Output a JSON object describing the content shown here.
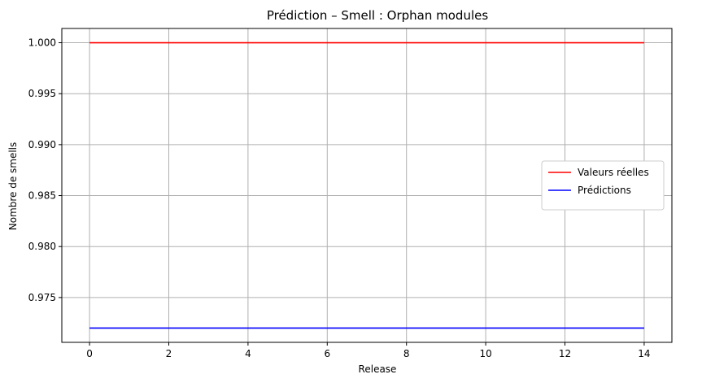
{
  "chart_data": {
    "type": "line",
    "title": "Prédiction – Smell : Orphan modules",
    "xlabel": "Release",
    "ylabel": "Nombre de smells",
    "xlim": [
      -0.7,
      14.7
    ],
    "ylim": [
      0.9706,
      1.0014
    ],
    "xticks": [
      0,
      2,
      4,
      6,
      8,
      10,
      12,
      14
    ],
    "xtick_labels": [
      "0",
      "2",
      "4",
      "6",
      "8",
      "10",
      "12",
      "14"
    ],
    "yticks": [
      0.975,
      0.98,
      0.985,
      0.99,
      0.995,
      1.0
    ],
    "ytick_labels": [
      "0.975",
      "0.980",
      "0.985",
      "0.990",
      "0.995",
      "1.000"
    ],
    "grid": true,
    "legend_position": "center-right",
    "x": [
      0,
      1,
      2,
      3,
      4,
      5,
      6,
      7,
      8,
      9,
      10,
      11,
      12,
      13,
      14
    ],
    "series": [
      {
        "name": "Valeurs réelles",
        "color": "#ff0000",
        "values": [
          1,
          1,
          1,
          1,
          1,
          1,
          1,
          1,
          1,
          1,
          1,
          1,
          1,
          1,
          1
        ]
      },
      {
        "name": "Prédictions",
        "color": "#0000ff",
        "values": [
          0.972,
          0.972,
          0.972,
          0.972,
          0.972,
          0.972,
          0.972,
          0.972,
          0.972,
          0.972,
          0.972,
          0.972,
          0.972,
          0.972,
          0.972
        ]
      }
    ]
  }
}
